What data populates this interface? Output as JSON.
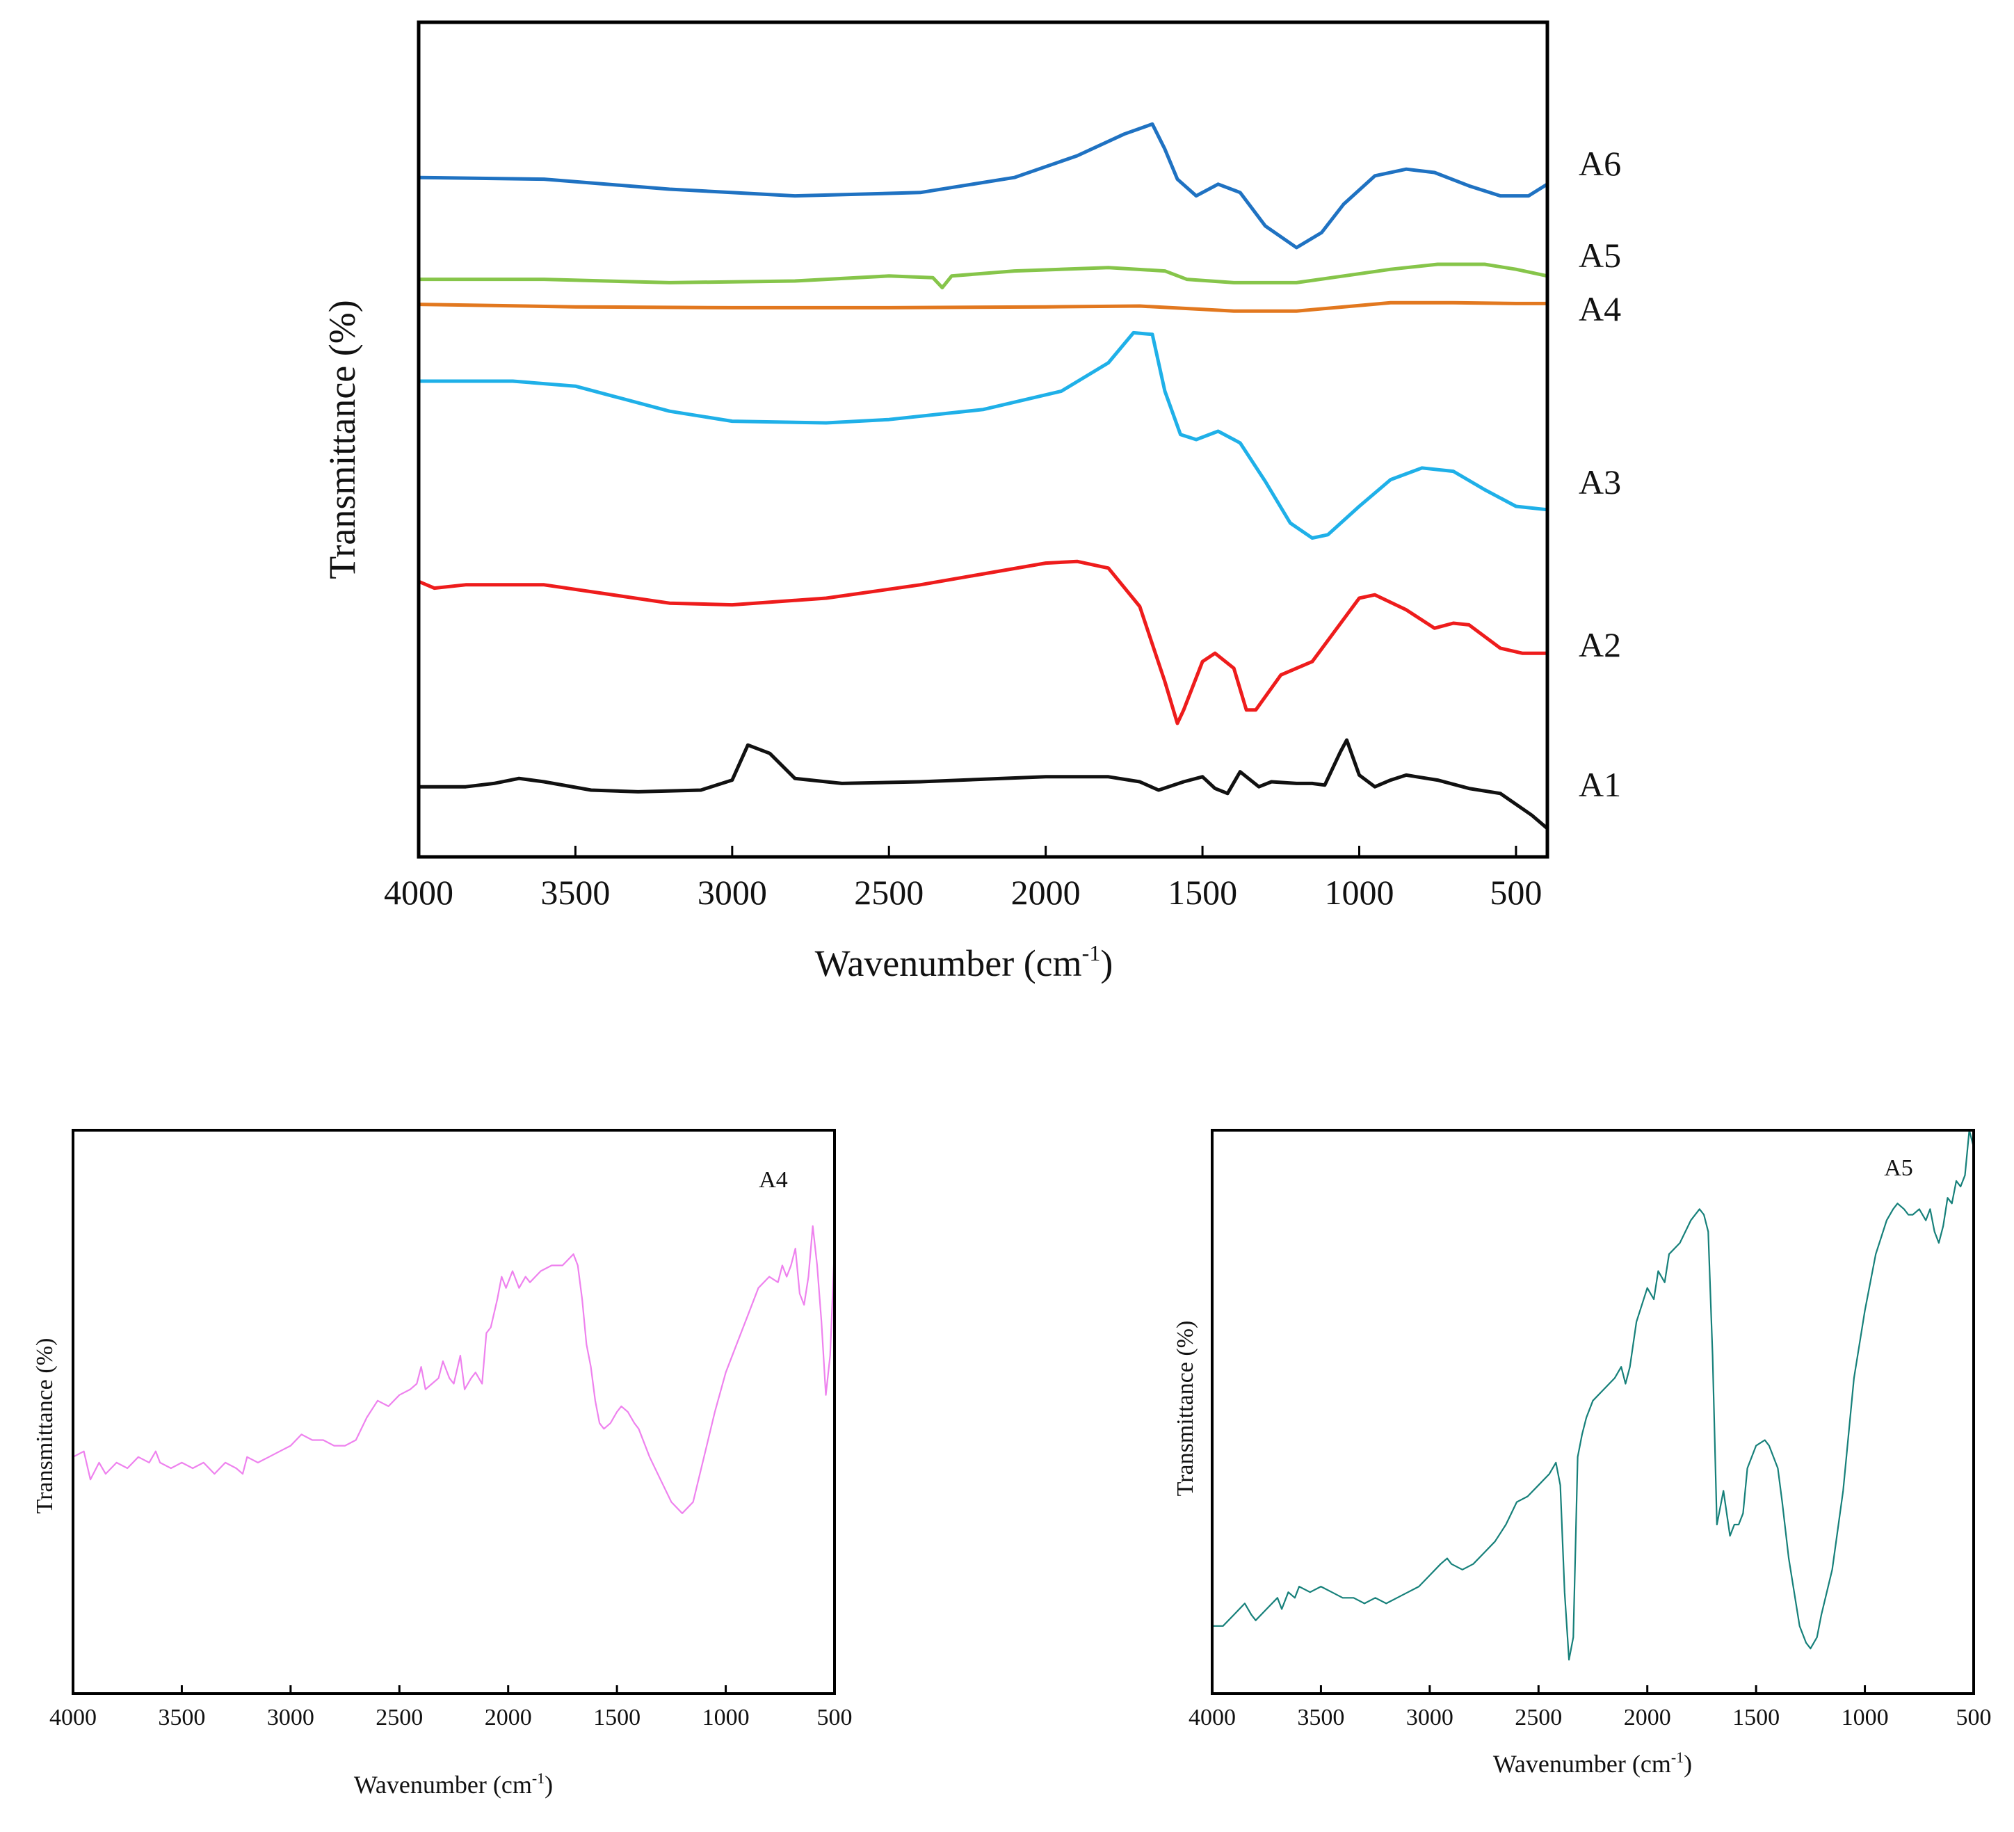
{
  "chart_data": [
    {
      "type": "line",
      "title": "",
      "xlabel_main": "Wavenumber (cm",
      "xlabel_sup": "-1",
      "xlabel_end": ")",
      "ylabel": "Transmittance (%)",
      "xlim": [
        4000,
        400
      ],
      "ylim": [
        0,
        100
      ],
      "xticks": [
        4000,
        3500,
        3000,
        2500,
        2000,
        1500,
        1000,
        500
      ],
      "yticks_shown": false,
      "series": [
        {
          "name": "A6",
          "color": "#1f72c2",
          "x": [
            4000,
            3600,
            3200,
            2800,
            2400,
            2100,
            1900,
            1750,
            1660,
            1620,
            1580,
            1520,
            1450,
            1380,
            1300,
            1200,
            1120,
            1050,
            950,
            850,
            760,
            650,
            550,
            460,
            400
          ],
          "y": [
            81.4,
            81.2,
            80.0,
            79.2,
            79.6,
            81.4,
            84.0,
            86.6,
            87.8,
            84.8,
            81.2,
            79.2,
            80.6,
            79.6,
            75.6,
            73.0,
            74.8,
            78.2,
            81.6,
            82.4,
            82.0,
            80.4,
            79.2,
            79.2,
            80.6
          ]
        },
        {
          "name": "A5",
          "color": "#86c54a",
          "x": [
            4000,
            3600,
            3200,
            2800,
            2500,
            2360,
            2330,
            2300,
            2100,
            1800,
            1620,
            1550,
            1400,
            1200,
            1050,
            900,
            750,
            600,
            500,
            400
          ],
          "y": [
            69.2,
            69.2,
            68.8,
            69.0,
            69.6,
            69.4,
            68.2,
            69.6,
            70.2,
            70.6,
            70.2,
            69.2,
            68.8,
            68.8,
            69.6,
            70.4,
            71.0,
            71.0,
            70.4,
            69.6
          ]
        },
        {
          "name": "A4",
          "color": "#e2781f",
          "x": [
            4000,
            3500,
            3000,
            2500,
            2000,
            1700,
            1600,
            1500,
            1400,
            1200,
            1050,
            900,
            700,
            500,
            400
          ],
          "y": [
            66.2,
            65.9,
            65.8,
            65.8,
            65.9,
            66.0,
            65.8,
            65.6,
            65.4,
            65.4,
            65.9,
            66.4,
            66.4,
            66.3,
            66.3
          ]
        },
        {
          "name": "A3",
          "color": "#1fb0e8",
          "x": [
            4000,
            3700,
            3500,
            3200,
            3000,
            2700,
            2500,
            2200,
            1950,
            1800,
            1720,
            1660,
            1620,
            1570,
            1520,
            1450,
            1380,
            1300,
            1220,
            1150,
            1100,
            1000,
            900,
            800,
            700,
            600,
            500,
            400
          ],
          "y": [
            57.0,
            57.0,
            56.4,
            53.4,
            52.2,
            52.0,
            52.4,
            53.6,
            55.8,
            59.2,
            62.8,
            62.6,
            55.8,
            50.6,
            50.0,
            51.0,
            49.6,
            45.0,
            40.0,
            38.2,
            38.6,
            42.0,
            45.2,
            46.6,
            46.2,
            44.0,
            42.0,
            41.6
          ]
        },
        {
          "name": "A2",
          "color": "#ee1c1c",
          "x": [
            4000,
            3950,
            3850,
            3600,
            3200,
            3000,
            2700,
            2400,
            2000,
            1900,
            1800,
            1700,
            1620,
            1580,
            1560,
            1500,
            1460,
            1400,
            1360,
            1330,
            1250,
            1150,
            1000,
            950,
            850,
            760,
            700,
            650,
            550,
            480,
            400
          ],
          "y": [
            33.0,
            32.2,
            32.6,
            32.6,
            30.4,
            30.2,
            31.0,
            32.6,
            35.2,
            35.4,
            34.6,
            30.0,
            21.0,
            16.0,
            17.6,
            23.4,
            24.4,
            22.6,
            17.6,
            17.6,
            21.8,
            23.4,
            31.0,
            31.4,
            29.6,
            27.4,
            28.0,
            27.8,
            25.0,
            24.4,
            24.4
          ]
        },
        {
          "name": "A1",
          "color": "#111111",
          "x": [
            4000,
            3850,
            3760,
            3680,
            3600,
            3450,
            3300,
            3100,
            3000,
            2950,
            2880,
            2800,
            2650,
            2400,
            2000,
            1800,
            1700,
            1640,
            1560,
            1500,
            1460,
            1420,
            1380,
            1360,
            1320,
            1280,
            1200,
            1150,
            1110,
            1060,
            1040,
            1000,
            950,
            900,
            850,
            750,
            650,
            550,
            450,
            400
          ],
          "y": [
            8.4,
            8.4,
            8.8,
            9.4,
            9.0,
            8.0,
            7.8,
            8.0,
            9.2,
            13.4,
            12.4,
            9.4,
            8.8,
            9.0,
            9.6,
            9.6,
            9.0,
            8.0,
            9.0,
            9.6,
            8.2,
            7.6,
            10.2,
            9.6,
            8.4,
            9.0,
            8.8,
            8.8,
            8.6,
            12.6,
            14.0,
            9.8,
            8.4,
            9.2,
            9.8,
            9.2,
            8.2,
            7.6,
            5.0,
            3.4
          ]
        }
      ]
    },
    {
      "type": "line",
      "title": "A4",
      "xlabel_main": "Wavenumber (cm",
      "xlabel_sup": "-1",
      "xlabel_end": ")",
      "ylabel": "Transmittance (%)",
      "xlim": [
        4000,
        500
      ],
      "ylim": [
        0,
        100
      ],
      "xticks": [
        4000,
        3500,
        3000,
        2500,
        2000,
        1500,
        1000,
        500
      ],
      "yticks_shown": false,
      "series": [
        {
          "name": "A4",
          "color": "#ee82ee",
          "x": [
            4000,
            3950,
            3920,
            3880,
            3850,
            3800,
            3750,
            3700,
            3650,
            3620,
            3600,
            3550,
            3500,
            3450,
            3400,
            3350,
            3300,
            3250,
            3220,
            3200,
            3150,
            3100,
            3050,
            3000,
            2950,
            2900,
            2850,
            2800,
            2750,
            2700,
            2650,
            2600,
            2550,
            2500,
            2450,
            2420,
            2400,
            2380,
            2350,
            2320,
            2300,
            2270,
            2250,
            2220,
            2200,
            2170,
            2150,
            2120,
            2100,
            2080,
            2050,
            2030,
            2010,
            2000,
            1980,
            1950,
            1920,
            1900,
            1850,
            1800,
            1750,
            1700,
            1680,
            1660,
            1640,
            1620,
            1600,
            1580,
            1560,
            1530,
            1500,
            1480,
            1450,
            1420,
            1400,
            1350,
            1300,
            1250,
            1200,
            1150,
            1100,
            1050,
            1000,
            950,
            900,
            850,
            800,
            760,
            740,
            720,
            700,
            680,
            660,
            640,
            620,
            600,
            580,
            560,
            540,
            520,
            500
          ],
          "y": [
            42,
            43,
            38,
            41,
            39,
            41,
            40,
            42,
            41,
            43,
            41,
            40,
            41,
            40,
            41,
            39,
            41,
            40,
            39,
            42,
            41,
            42,
            43,
            44,
            46,
            45,
            45,
            44,
            44,
            45,
            49,
            52,
            51,
            53,
            54,
            55,
            58,
            54,
            55,
            56,
            59,
            56,
            55,
            60,
            54,
            56,
            57,
            55,
            64,
            65,
            70,
            74,
            72,
            73,
            75,
            72,
            74,
            73,
            75,
            76,
            76,
            78,
            76,
            70,
            62,
            58,
            52,
            48,
            47,
            48,
            50,
            51,
            50,
            48,
            47,
            42,
            38,
            34,
            32,
            34,
            42,
            50,
            57,
            62,
            67,
            72,
            74,
            73,
            76,
            74,
            76,
            79,
            71,
            69,
            74,
            83,
            76,
            66,
            53,
            60,
            79
          ]
        }
      ]
    },
    {
      "type": "line",
      "title": "A5",
      "xlabel_main": "Wavenumber (cm",
      "xlabel_sup": "-1",
      "xlabel_end": ")",
      "ylabel": "Transmittance (%)",
      "xlim": [
        4000,
        500
      ],
      "ylim": [
        0,
        100
      ],
      "xticks": [
        4000,
        3500,
        3000,
        2500,
        2000,
        1500,
        1000,
        500
      ],
      "yticks_shown": false,
      "series": [
        {
          "name": "A5",
          "color": "#16807a",
          "x": [
            4000,
            3950,
            3900,
            3850,
            3820,
            3800,
            3750,
            3700,
            3680,
            3650,
            3620,
            3600,
            3550,
            3500,
            3450,
            3400,
            3350,
            3300,
            3250,
            3200,
            3150,
            3100,
            3050,
            3000,
            2950,
            2920,
            2900,
            2850,
            2800,
            2750,
            2700,
            2650,
            2600,
            2550,
            2500,
            2450,
            2420,
            2400,
            2380,
            2360,
            2340,
            2320,
            2300,
            2280,
            2250,
            2200,
            2150,
            2120,
            2100,
            2080,
            2050,
            2000,
            1970,
            1950,
            1920,
            1900,
            1850,
            1800,
            1760,
            1740,
            1720,
            1700,
            1680,
            1650,
            1620,
            1600,
            1580,
            1560,
            1540,
            1500,
            1460,
            1440,
            1400,
            1380,
            1350,
            1300,
            1270,
            1250,
            1220,
            1200,
            1150,
            1100,
            1050,
            1000,
            950,
            900,
            870,
            850,
            820,
            800,
            780,
            750,
            720,
            700,
            680,
            660,
            640,
            620,
            600,
            580,
            560,
            540,
            520,
            500
          ],
          "y": [
            12,
            12,
            14,
            16,
            14,
            13,
            15,
            17,
            15,
            18,
            17,
            19,
            18,
            19,
            18,
            17,
            17,
            16,
            17,
            16,
            17,
            18,
            19,
            21,
            23,
            24,
            23,
            22,
            23,
            25,
            27,
            30,
            34,
            35,
            37,
            39,
            41,
            37,
            18,
            6,
            10,
            42,
            46,
            49,
            52,
            54,
            56,
            58,
            55,
            58,
            66,
            72,
            70,
            75,
            73,
            78,
            80,
            84,
            86,
            85,
            82,
            60,
            30,
            36,
            28,
            30,
            30,
            32,
            40,
            44,
            45,
            44,
            40,
            34,
            24,
            12,
            9,
            8,
            10,
            14,
            22,
            36,
            56,
            68,
            78,
            84,
            86,
            87,
            86,
            85,
            85,
            86,
            84,
            86,
            82,
            80,
            83,
            88,
            87,
            91,
            90,
            92,
            100,
            97
          ]
        }
      ]
    }
  ]
}
